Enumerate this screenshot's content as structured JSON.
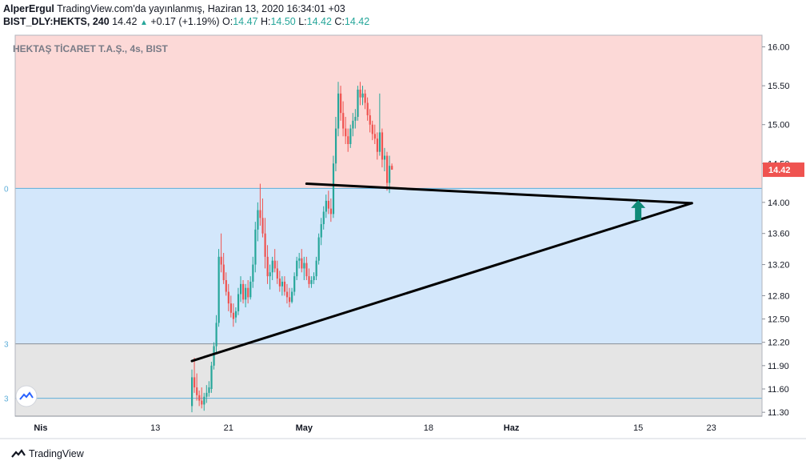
{
  "header": {
    "author": "AlperErgul",
    "published": "TradingView.com'da yayınlanmış, Haziran 13, 2020 16:34:01 +03",
    "symbol": "BIST_DLY:HEKTS, 240",
    "last": "14.42",
    "change_arrow": "▲",
    "change": "+0.17 (+1.19%)",
    "o_label": "O:",
    "o_value": "14.47",
    "h_label": "H:",
    "h_value": "14.50",
    "l_label": "L:",
    "l_value": "14.42",
    "c_label": "C:",
    "c_value": "14.42"
  },
  "footer": {
    "brand": "TradingView",
    "logo_icon": "tradingview-logo-icon"
  },
  "colors": {
    "up": "#26a69a",
    "down": "#ef5350",
    "zone_red": "#fcd9d7",
    "zone_blue": "#d3e7fb",
    "zone_gray": "#e5e5e5",
    "level_line": "#5eaed9",
    "price_tag": "#ef5350",
    "trend": "#000000"
  },
  "chart_data": {
    "type": "candlestick",
    "title": "HEKTAŞ TİCARET T.A.Ş., 4s, BIST",
    "ylim": [
      11.25,
      16.15
    ],
    "y_ticks": [
      "16.00",
      "15.50",
      "15.00",
      "14.50",
      "14.00",
      "13.60",
      "13.20",
      "12.80",
      "12.50",
      "12.20",
      "11.90",
      "11.60",
      "11.30"
    ],
    "y_tick_values": [
      16.0,
      15.5,
      15.0,
      14.5,
      14.0,
      13.6,
      13.2,
      12.8,
      12.5,
      12.2,
      11.9,
      11.6,
      11.3
    ],
    "x_ticks": [
      {
        "label": "Nis",
        "bar": -62
      },
      {
        "label": "13",
        "bar": -15
      },
      {
        "label": "21",
        "bar": 15
      },
      {
        "label": "May",
        "bar": 46
      },
      {
        "label": "18",
        "bar": 97
      },
      {
        "label": "Haz",
        "bar": 131
      },
      {
        "label": "15",
        "bar": 183
      },
      {
        "label": "23",
        "bar": 213
      }
    ],
    "last_price_label": "14.42",
    "last_price": 14.42,
    "zones": [
      {
        "name": "resistance-zone",
        "from": 14.18,
        "to": 16.15
      },
      {
        "name": "middle-zone",
        "from": 12.18,
        "to": 14.18
      },
      {
        "name": "support-zone",
        "from": 11.25,
        "to": 12.18
      }
    ],
    "levels": [
      14.18,
      12.18,
      11.48
    ],
    "level_left_labels": [
      "0",
      "3",
      "3"
    ],
    "trendlines": [
      {
        "name": "upper-trendline",
        "from_bar": 47,
        "from": 14.24,
        "to_bar": 205,
        "to": 13.99
      },
      {
        "name": "lower-trendline",
        "from_bar": 0,
        "from": 11.96,
        "to_bar": 205,
        "to": 13.99
      }
    ],
    "arrow": {
      "bar": 183,
      "from": 13.77,
      "to": 14.0
    },
    "candles": [
      [
        11.38,
        11.85,
        11.3,
        11.75
      ],
      [
        11.75,
        12.0,
        11.55,
        11.62
      ],
      [
        11.62,
        11.8,
        11.45,
        11.52
      ],
      [
        11.52,
        11.58,
        11.38,
        11.45
      ],
      [
        11.45,
        11.62,
        11.35,
        11.4
      ],
      [
        11.4,
        11.55,
        11.32,
        11.5
      ],
      [
        11.5,
        11.65,
        11.42,
        11.55
      ],
      [
        11.55,
        11.7,
        11.5,
        11.62
      ],
      [
        11.6,
        11.95,
        11.55,
        11.9
      ],
      [
        11.9,
        12.2,
        11.85,
        12.15
      ],
      [
        12.15,
        12.55,
        12.05,
        12.45
      ],
      [
        12.45,
        13.4,
        12.4,
        13.3
      ],
      [
        13.3,
        13.6,
        13.1,
        13.2
      ],
      [
        13.2,
        13.35,
        12.95,
        13.0
      ],
      [
        13.0,
        13.1,
        12.8,
        12.85
      ],
      [
        12.85,
        12.95,
        12.6,
        12.7
      ],
      [
        12.7,
        12.8,
        12.52,
        12.58
      ],
      [
        12.58,
        12.7,
        12.4,
        12.5
      ],
      [
        12.52,
        12.65,
        12.45,
        12.6
      ],
      [
        12.6,
        12.9,
        12.55,
        12.82
      ],
      [
        12.82,
        13.05,
        12.72,
        12.95
      ],
      [
        12.95,
        13.0,
        12.7,
        12.75
      ],
      [
        12.75,
        12.95,
        12.65,
        12.9
      ],
      [
        12.9,
        13.0,
        12.7,
        12.78
      ],
      [
        12.78,
        13.05,
        12.75,
        12.98
      ],
      [
        12.98,
        13.3,
        12.9,
        13.2
      ],
      [
        13.2,
        13.75,
        13.1,
        13.65
      ],
      [
        13.65,
        14.0,
        13.5,
        13.9
      ],
      [
        13.9,
        14.24,
        13.7,
        13.8
      ],
      [
        13.8,
        14.05,
        13.55,
        13.6
      ],
      [
        13.6,
        13.8,
        13.15,
        13.3
      ],
      [
        13.3,
        13.45,
        12.95,
        13.05
      ],
      [
        13.05,
        13.2,
        12.88,
        13.1
      ],
      [
        13.1,
        13.3,
        13.0,
        13.25
      ],
      [
        13.25,
        13.4,
        13.1,
        13.15
      ],
      [
        13.15,
        13.25,
        12.95,
        13.02
      ],
      [
        13.02,
        13.12,
        12.85,
        12.92
      ],
      [
        12.92,
        13.05,
        12.8,
        12.98
      ],
      [
        12.98,
        13.05,
        12.8,
        12.85
      ],
      [
        12.85,
        12.95,
        12.7,
        12.78
      ],
      [
        12.78,
        12.9,
        12.65,
        12.72
      ],
      [
        12.72,
        12.9,
        12.7,
        12.85
      ],
      [
        12.85,
        13.1,
        12.8,
        13.05
      ],
      [
        13.05,
        13.3,
        13.0,
        13.25
      ],
      [
        13.25,
        13.35,
        13.15,
        13.28
      ],
      [
        13.28,
        13.4,
        13.1,
        13.15
      ],
      [
        13.15,
        13.3,
        13.0,
        13.22
      ],
      [
        13.22,
        13.3,
        13.0,
        13.05
      ],
      [
        13.05,
        13.15,
        12.9,
        12.95
      ],
      [
        12.95,
        13.05,
        12.9,
        13.0
      ],
      [
        13.0,
        13.1,
        12.95,
        13.05
      ],
      [
        13.05,
        13.3,
        13.0,
        13.25
      ],
      [
        13.25,
        13.6,
        13.2,
        13.55
      ],
      [
        13.55,
        13.8,
        13.45,
        13.72
      ],
      [
        13.72,
        13.95,
        13.65,
        13.88
      ],
      [
        13.88,
        14.1,
        13.8,
        14.02
      ],
      [
        14.02,
        14.15,
        13.85,
        13.92
      ],
      [
        13.92,
        14.05,
        13.75,
        13.85
      ],
      [
        13.85,
        14.6,
        13.8,
        14.5
      ],
      [
        14.5,
        15.1,
        14.4,
        14.95
      ],
      [
        14.95,
        15.55,
        14.85,
        15.4
      ],
      [
        15.4,
        15.5,
        15.05,
        15.15
      ],
      [
        15.15,
        15.3,
        14.85,
        14.95
      ],
      [
        14.95,
        15.1,
        14.75,
        14.85
      ],
      [
        14.85,
        14.95,
        14.65,
        14.75
      ],
      [
        14.75,
        15.0,
        14.7,
        14.95
      ],
      [
        14.95,
        15.15,
        14.85,
        15.05
      ],
      [
        15.05,
        15.2,
        14.95,
        15.1
      ],
      [
        15.1,
        15.5,
        15.05,
        15.45
      ],
      [
        15.45,
        15.55,
        15.25,
        15.35
      ],
      [
        15.35,
        15.5,
        15.25,
        15.4
      ],
      [
        15.4,
        15.45,
        15.2,
        15.28
      ],
      [
        15.28,
        15.35,
        15.05,
        15.12
      ],
      [
        15.12,
        15.2,
        14.9,
        15.0
      ],
      [
        15.0,
        15.05,
        14.8,
        14.88
      ],
      [
        14.88,
        15.0,
        14.75,
        14.82
      ],
      [
        14.82,
        14.9,
        14.55,
        14.65
      ],
      [
        14.65,
        15.4,
        14.6,
        14.9
      ],
      [
        14.9,
        14.95,
        14.45,
        14.55
      ],
      [
        14.55,
        14.7,
        14.4,
        14.6
      ],
      [
        14.6,
        14.65,
        14.15,
        14.25
      ],
      [
        14.25,
        14.6,
        14.12,
        14.47
      ],
      [
        14.47,
        14.5,
        14.42,
        14.42
      ]
    ]
  }
}
